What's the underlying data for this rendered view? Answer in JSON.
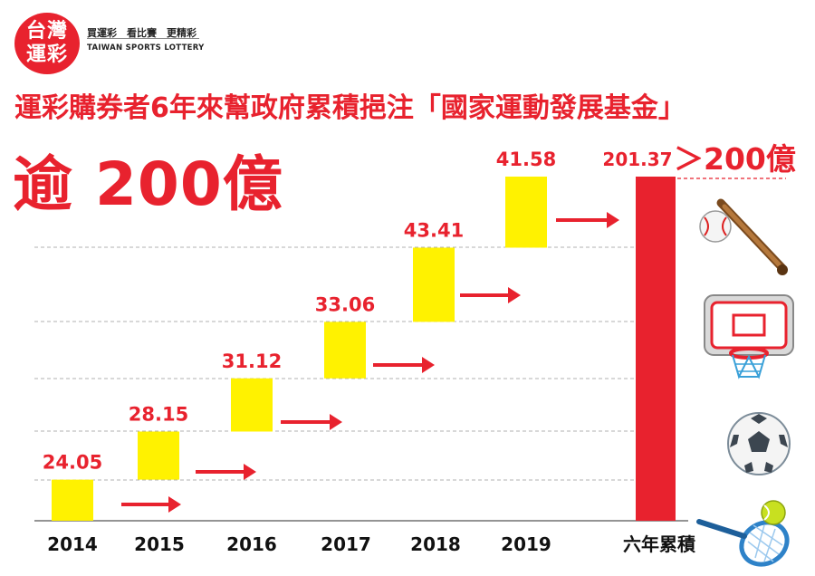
{
  "logo": {
    "badge_line1": "台灣",
    "badge_line2": "運彩",
    "slogan": "買運彩　看比賽　更精彩",
    "subtitle": "TAIWAN SPORTS LOTTERY"
  },
  "headline": "運彩購券者6年來幫政府累積挹注「國家運動發展基金」",
  "big_total": "逾  200億",
  "colors": {
    "red": "#e8222e",
    "yellow": "#fff200",
    "grid": "#b0b0b0"
  },
  "chart_data": {
    "type": "waterfall-bar",
    "title": "運彩購券者6年來幫政府累積挹注「國家運動發展基金」",
    "categories": [
      "2014",
      "2015",
      "2016",
      "2017",
      "2018",
      "2019"
    ],
    "values": [
      24.05,
      28.15,
      31.12,
      33.06,
      43.41,
      41.58
    ],
    "value_labels": [
      "24.05",
      "28.15",
      "31.12",
      "33.06",
      "43.41",
      "41.58"
    ],
    "total_category": "六年累積",
    "total_value": 201.37,
    "total_label": "201.37",
    "annotation": "＞200億",
    "ylim": [
      0,
      201.37
    ],
    "grid": true,
    "xlabel": "",
    "ylabel": ""
  },
  "icons": [
    "baseball-icon",
    "basketball-hoop-icon",
    "soccer-ball-icon",
    "tennis-icon"
  ]
}
